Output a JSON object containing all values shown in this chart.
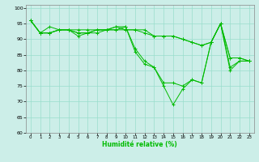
{
  "xlabel": "Humidité relative (%)",
  "xlim": [
    -0.5,
    23.5
  ],
  "ylim": [
    60,
    101
  ],
  "yticks": [
    60,
    65,
    70,
    75,
    80,
    85,
    90,
    95,
    100
  ],
  "xticks": [
    0,
    1,
    2,
    3,
    4,
    5,
    6,
    7,
    8,
    9,
    10,
    11,
    12,
    13,
    14,
    15,
    16,
    17,
    18,
    19,
    20,
    21,
    22,
    23
  ],
  "background_color": "#cceee8",
  "grid_color": "#99ddcc",
  "line_color": "#00bb00",
  "series": [
    [
      96,
      92,
      92,
      93,
      93,
      92,
      92,
      92,
      93,
      93,
      94,
      86,
      82,
      81,
      75,
      69,
      74,
      77,
      76,
      89,
      95,
      80,
      83,
      83
    ],
    [
      96,
      92,
      94,
      93,
      93,
      91,
      92,
      93,
      93,
      94,
      94,
      87,
      83,
      81,
      76,
      76,
      75,
      77,
      76,
      89,
      95,
      81,
      83,
      83
    ],
    [
      96,
      92,
      92,
      93,
      93,
      92,
      92,
      93,
      93,
      93,
      93,
      93,
      92,
      91,
      91,
      91,
      90,
      89,
      88,
      89,
      95,
      84,
      84,
      83
    ],
    [
      96,
      92,
      92,
      93,
      93,
      93,
      93,
      93,
      93,
      94,
      93,
      93,
      93,
      91,
      91,
      91,
      90,
      89,
      88,
      89,
      95,
      84,
      84,
      83
    ]
  ]
}
